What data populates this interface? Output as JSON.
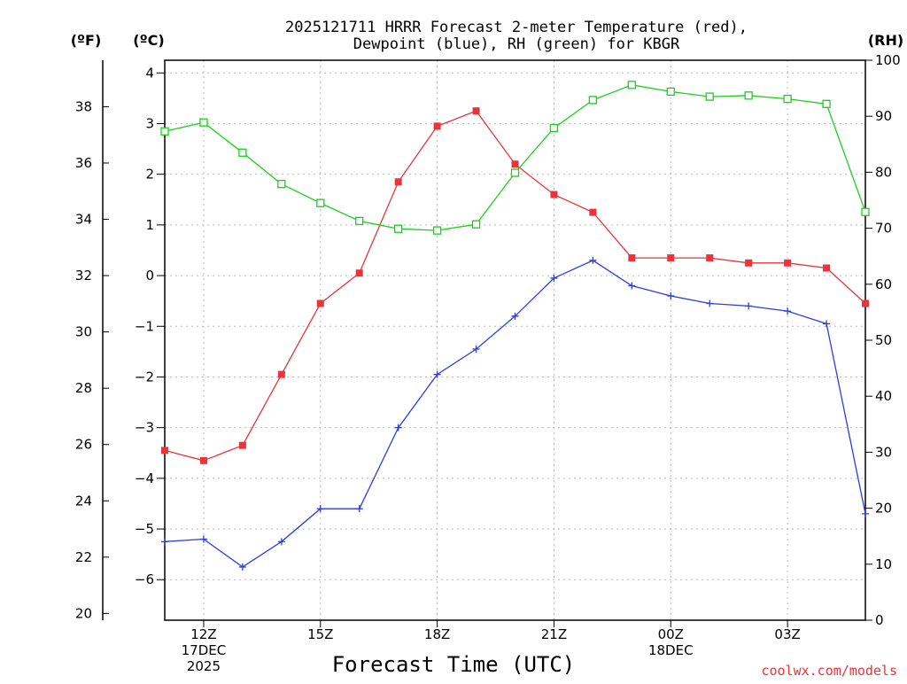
{
  "chart_data": {
    "type": "line",
    "title_line1": "2025121711 HRRR Forecast 2-meter Temperature (red),",
    "title_line2": "Dewpoint (blue), RH (green) for KBGR",
    "xlabel": "Forecast Time (UTC)",
    "credit": "coolwx.com/models",
    "unit_labels": {
      "f": "(ºF)",
      "c": "(ºC)",
      "rh": "(RH)"
    },
    "c_axis": {
      "lim": [
        -6.8,
        4.25
      ],
      "ticks": [
        4,
        3,
        2,
        1,
        0,
        -1,
        -2,
        -3,
        -4,
        -5,
        -6
      ],
      "tick_labels": [
        "4",
        "3",
        "2",
        "1",
        "0",
        "−1",
        "−2",
        "−3",
        "−4",
        "−5",
        "−6"
      ]
    },
    "f_axis": {
      "ticks": [
        20,
        22,
        24,
        26,
        28,
        30,
        32,
        34,
        36,
        38
      ],
      "tick_labels": [
        "20",
        "22",
        "24",
        "26",
        "28",
        "30",
        "32",
        "34",
        "36",
        "38"
      ]
    },
    "rh_axis": {
      "lim": [
        0,
        100
      ],
      "ticks": [
        0,
        10,
        20,
        30,
        40,
        50,
        60,
        70,
        80,
        90,
        100
      ],
      "tick_labels": [
        "0",
        "10",
        "20",
        "30",
        "40",
        "50",
        "60",
        "70",
        "80",
        "90",
        "100"
      ]
    },
    "x_hours": [
      11,
      12,
      13,
      14,
      15,
      16,
      17,
      18,
      19,
      20,
      21,
      22,
      23,
      24,
      25,
      26,
      27,
      28,
      29
    ],
    "x_ticks": [
      {
        "hour": 12,
        "lines": [
          "12Z",
          "17DEC",
          "2025"
        ]
      },
      {
        "hour": 15,
        "lines": [
          "15Z"
        ]
      },
      {
        "hour": 18,
        "lines": [
          "18Z"
        ]
      },
      {
        "hour": 21,
        "lines": [
          "21Z"
        ]
      },
      {
        "hour": 24,
        "lines": [
          "00Z",
          "18DEC"
        ]
      },
      {
        "hour": 27,
        "lines": [
          "03Z"
        ]
      }
    ],
    "series": [
      {
        "name": "Temperature",
        "units": "C",
        "color": "#e8343a",
        "marker": "filled-square",
        "values": [
          -3.45,
          -3.65,
          -3.35,
          -1.95,
          -0.55,
          0.05,
          1.85,
          2.95,
          3.25,
          2.2,
          1.6,
          1.25,
          0.35,
          0.35,
          0.35,
          0.25,
          0.25,
          0.15,
          -0.55
        ]
      },
      {
        "name": "Dewpoint",
        "units": "C",
        "color": "#2a3ee6",
        "marker": "plus",
        "values": [
          -5.25,
          -5.2,
          -5.75,
          -5.25,
          -4.6,
          -4.6,
          -3.0,
          -1.95,
          -1.45,
          -0.8,
          -0.05,
          0.3,
          -0.2,
          -0.4,
          -0.55,
          -0.6,
          -0.7,
          -0.95,
          -4.7
        ]
      },
      {
        "name": "RH",
        "units": "%",
        "color": "#19d119",
        "marker": "open-square",
        "values": [
          87.3,
          88.9,
          83.5,
          77.9,
          74.5,
          71.3,
          69.9,
          69.6,
          70.7,
          79.9,
          87.9,
          92.9,
          95.6,
          94.4,
          93.5,
          93.7,
          93.1,
          92.2,
          72.9
        ]
      }
    ]
  }
}
